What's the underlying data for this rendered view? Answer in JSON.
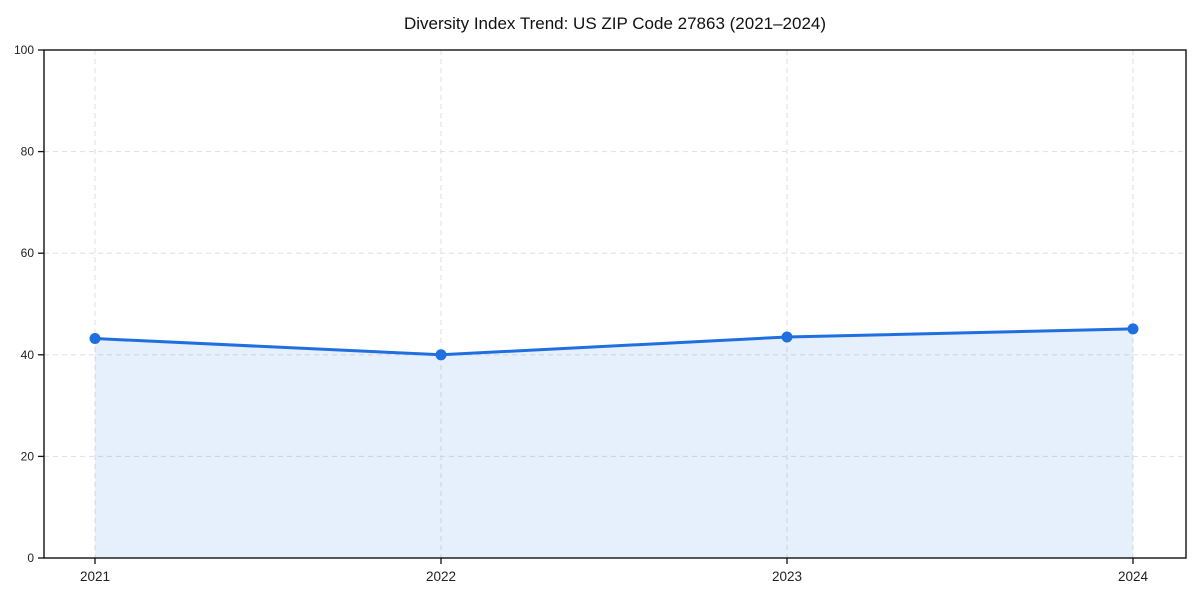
{
  "chart_data": {
    "type": "line",
    "title": "Diversity Index Trend: US ZIP Code 27863 (2021–2024)",
    "xlabel": "",
    "ylabel": "",
    "x": [
      "2021",
      "2022",
      "2023",
      "2024"
    ],
    "series": [
      {
        "name": "Diversity Index",
        "values": [
          43.2,
          40.0,
          43.5,
          45.1
        ]
      }
    ],
    "ylim": [
      0,
      100
    ],
    "yticks": [
      0,
      20,
      40,
      60,
      80,
      100
    ],
    "grid": "dashed",
    "legend_position": "none",
    "colors": {
      "line": "#1f6fe0",
      "marker": "#1f6fe0",
      "area_fill": "rgba(31,111,224,0.11)",
      "grid": "#e2e2e2",
      "frame": "#111111",
      "tick_label": "#222222",
      "title": "#111111",
      "background": "#ffffff"
    }
  }
}
